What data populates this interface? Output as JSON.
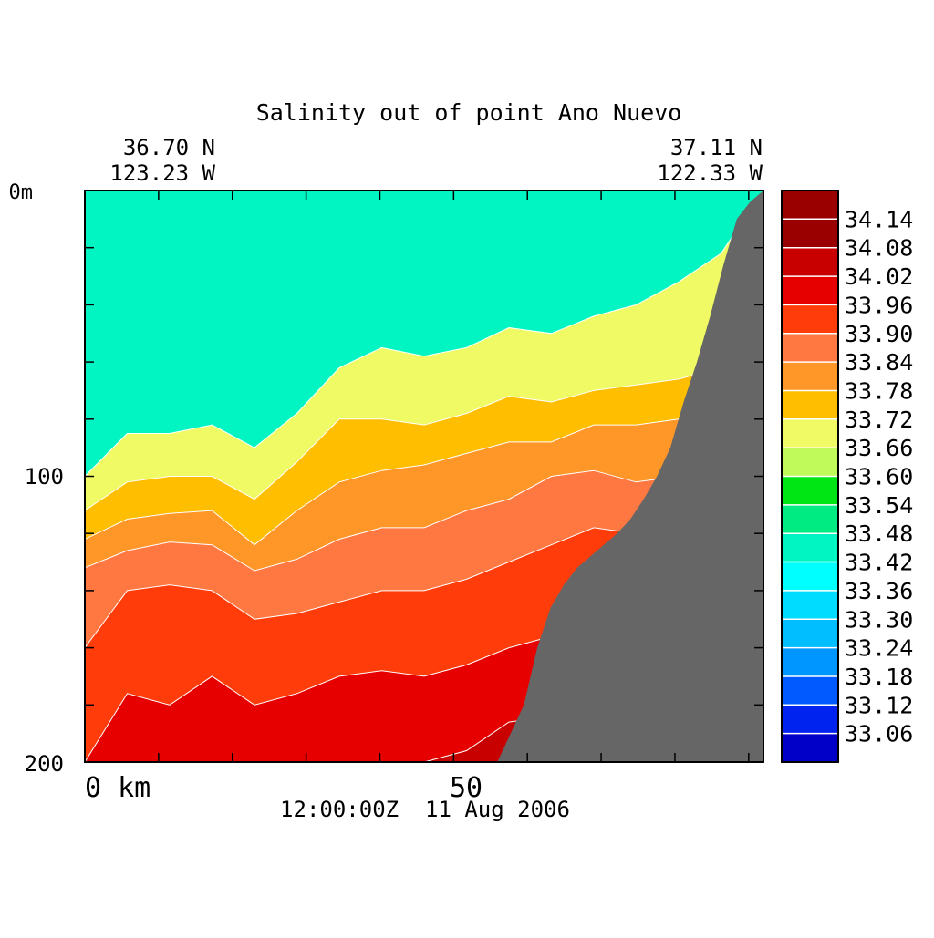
{
  "chart_data": {
    "type": "contour",
    "title": "Salinity out of point Ano Nuevo",
    "start": {
      "lat": "36.70 N",
      "lon": "123.23 W"
    },
    "end": {
      "lat": "37.11 N",
      "lon": "122.33 W"
    },
    "x_axis": {
      "tick_labels": [
        "0 km",
        "50"
      ],
      "range_km": [
        0,
        92
      ]
    },
    "y_axis": {
      "tick_labels": [
        "0m",
        "100",
        "200"
      ],
      "range_m": [
        0,
        200
      ],
      "inverted": true
    },
    "timestamp": "12:00:00Z  11 Aug 2006",
    "colorbar": {
      "levels": [
        "34.14",
        "34.08",
        "34.02",
        "33.96",
        "33.90",
        "33.84",
        "33.78",
        "33.72",
        "33.66",
        "33.60",
        "33.54",
        "33.48",
        "33.42",
        "33.36",
        "33.30",
        "33.24",
        "33.18",
        "33.12",
        "33.06"
      ],
      "colors": [
        "#9b0000",
        "#c80000",
        "#e60000",
        "#ff3c0a",
        "#ff7841",
        "#ff9628",
        "#ffbe00",
        "#f0fa64",
        "#c0fa5a",
        "#00e614",
        "#00eb82",
        "#00f5c3",
        "#00ffff",
        "#00dcff",
        "#00beff",
        "#0096ff",
        "#005aff",
        "#0023f0",
        "#0000c8"
      ]
    },
    "land_color": "#666666",
    "contour_levels": [
      {
        "level": "33.72",
        "depth_m": [
          100,
          85,
          85,
          82,
          90,
          78,
          62,
          55,
          58,
          55,
          48,
          50,
          44,
          40,
          32,
          22,
          0
        ]
      },
      {
        "level": "33.78",
        "depth_m": [
          112,
          102,
          100,
          100,
          108,
          95,
          80,
          80,
          82,
          78,
          72,
          74,
          70,
          68,
          66,
          62,
          48
        ]
      },
      {
        "level": "33.84",
        "depth_m": [
          122,
          115,
          113,
          112,
          124,
          112,
          102,
          98,
          96,
          92,
          88,
          88,
          82,
          82,
          80,
          80,
          74
        ]
      },
      {
        "level": "33.90",
        "depth_m": [
          132,
          126,
          123,
          124,
          133,
          129,
          122,
          118,
          118,
          112,
          108,
          100,
          98,
          102,
          100,
          104,
          100
        ]
      },
      {
        "level": "33.96",
        "depth_m": [
          160,
          140,
          138,
          140,
          150,
          148,
          144,
          140,
          140,
          136,
          130,
          124,
          118,
          120,
          116,
          126,
          128
        ]
      },
      {
        "level": "34.02",
        "depth_m": [
          200,
          176,
          180,
          170,
          180,
          176,
          170,
          168,
          170,
          166,
          160,
          156,
          150,
          152,
          150,
          160,
          176
        ]
      },
      {
        "level": "34.08",
        "depth_m": [
          200,
          200,
          200,
          200,
          200,
          200,
          200,
          200,
          200,
          196,
          186,
          184,
          186,
          190,
          200,
          200,
          200
        ]
      }
    ],
    "bathymetry_depth_m": [
      200,
      200,
      200,
      200,
      200,
      200,
      200,
      200,
      200,
      200,
      200,
      200,
      200,
      200,
      200,
      200,
      200,
      200,
      200,
      200,
      200,
      200,
      200,
      200,
      200,
      200,
      200,
      200,
      200,
      200,
      200,
      200,
      190,
      180,
      160,
      146,
      138,
      132,
      128,
      124,
      120,
      115,
      108,
      100,
      90,
      74,
      60,
      44,
      26,
      10,
      4,
      0
    ]
  }
}
